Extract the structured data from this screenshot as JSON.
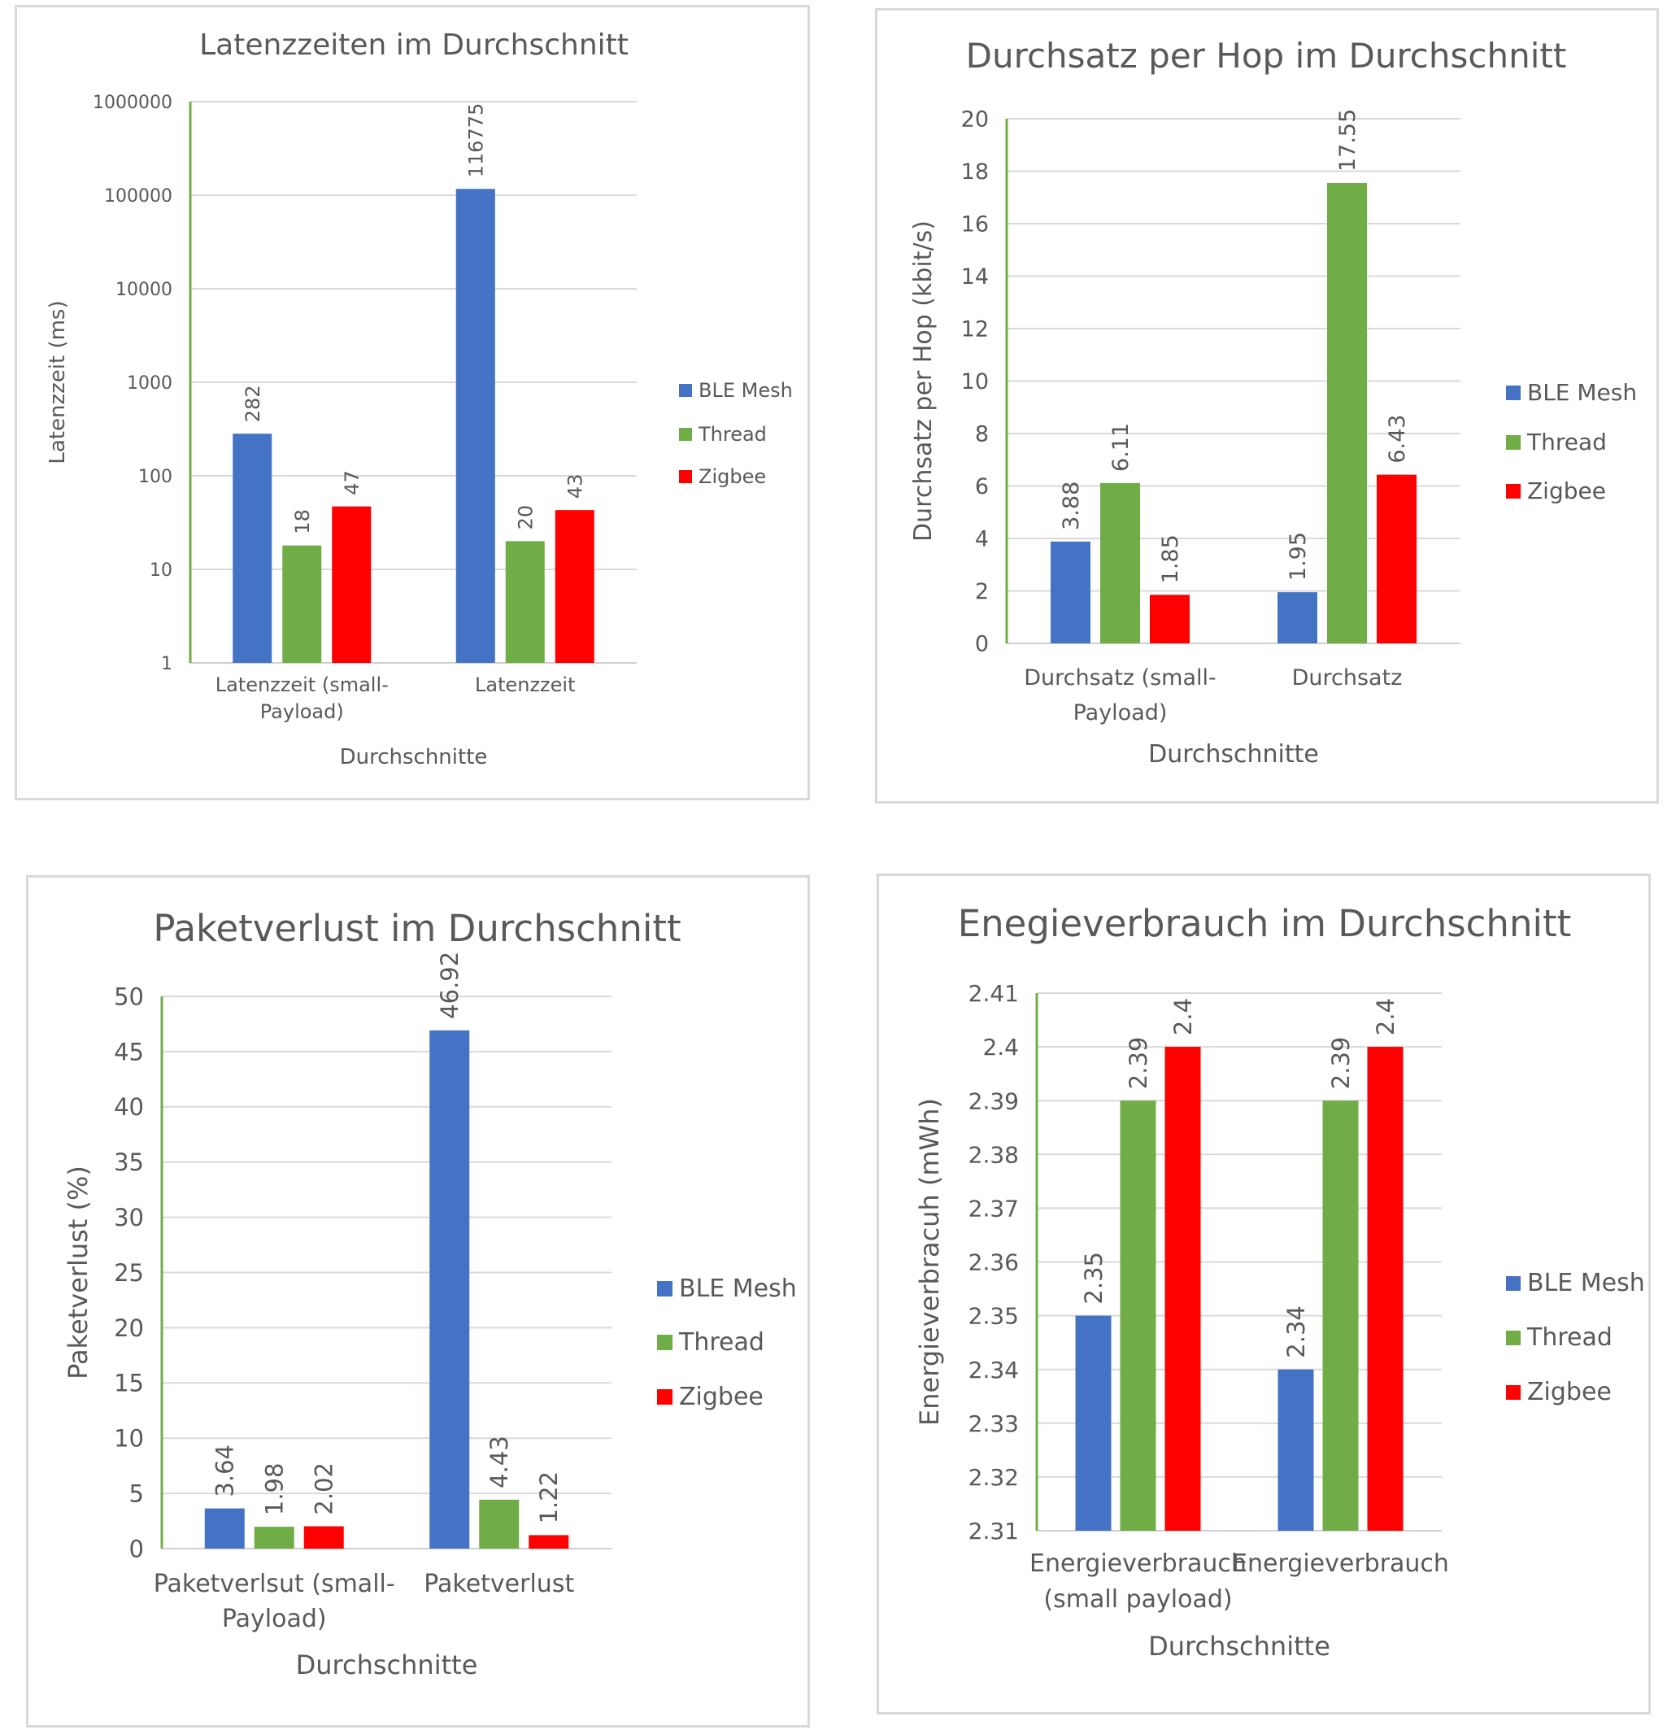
{
  "chart_data": [
    {
      "type": "bar",
      "title": "Latenzzeiten im Durchschnitt",
      "xlabel": "Durchschnitte",
      "ylabel": "Latenzzeit (ms)",
      "yscale": "log",
      "ylim": [
        1,
        1000000
      ],
      "yticks": [
        "1",
        "10",
        "100",
        "1000",
        "10000",
        "100000",
        "1000000"
      ],
      "categories": [
        [
          "Latenzzeit (small-",
          "Payload)"
        ],
        [
          "Latenzzeit"
        ]
      ],
      "series": [
        {
          "name": "BLE Mesh",
          "color": "#4472c4",
          "values": [
            282,
            116775
          ],
          "labels": [
            "282",
            "116775"
          ]
        },
        {
          "name": "Thread",
          "color": "#70ad47",
          "values": [
            18,
            20
          ],
          "labels": [
            "18",
            "20"
          ]
        },
        {
          "name": "Zigbee",
          "color": "#ff0000",
          "values": [
            47,
            43
          ],
          "labels": [
            "47",
            "43"
          ]
        }
      ],
      "legend_position": "right",
      "grid": true
    },
    {
      "type": "bar",
      "title": "Durchsatz per Hop im Durchschnitt",
      "xlabel": "Durchschnitte",
      "ylabel": "Durchsatz per Hop (kbit/s)",
      "yscale": "linear",
      "ylim": [
        0,
        20
      ],
      "yticks": [
        "0",
        "2",
        "4",
        "6",
        "8",
        "10",
        "12",
        "14",
        "16",
        "18",
        "20"
      ],
      "categories": [
        [
          "Durchsatz (small-",
          "Payload)"
        ],
        [
          "Durchsatz"
        ]
      ],
      "series": [
        {
          "name": "BLE Mesh",
          "color": "#4472c4",
          "values": [
            3.88,
            1.95
          ],
          "labels": [
            "3.88",
            "1.95"
          ]
        },
        {
          "name": "Thread",
          "color": "#70ad47",
          "values": [
            6.11,
            17.55
          ],
          "labels": [
            "6.11",
            "17.55"
          ]
        },
        {
          "name": "Zigbee",
          "color": "#ff0000",
          "values": [
            1.85,
            6.43
          ],
          "labels": [
            "1.85",
            "6.43"
          ]
        }
      ],
      "legend_position": "right",
      "grid": true
    },
    {
      "type": "bar",
      "title": "Paketverlust im Durchschnitt",
      "xlabel": "Durchschnitte",
      "ylabel": "Paketverlust (%)",
      "yscale": "linear",
      "ylim": [
        0,
        50
      ],
      "yticks": [
        "0",
        "5",
        "10",
        "15",
        "20",
        "25",
        "30",
        "35",
        "40",
        "45",
        "50"
      ],
      "categories": [
        [
          "Paketverlsut (small-",
          "Payload)"
        ],
        [
          "Paketverlust"
        ]
      ],
      "series": [
        {
          "name": "BLE Mesh",
          "color": "#4472c4",
          "values": [
            3.64,
            46.92
          ],
          "labels": [
            "3.64",
            "46.92"
          ]
        },
        {
          "name": "Thread",
          "color": "#70ad47",
          "values": [
            1.98,
            4.43
          ],
          "labels": [
            "1.98",
            "4.43"
          ]
        },
        {
          "name": "Zigbee",
          "color": "#ff0000",
          "values": [
            2.02,
            1.22
          ],
          "labels": [
            "2.02",
            "1.22"
          ]
        }
      ],
      "legend_position": "right",
      "grid": true
    },
    {
      "type": "bar",
      "title": "Enegieverbrauch im Durchschnitt",
      "xlabel": "Durchschnitte",
      "ylabel": "Energieverbracuh (mWh)",
      "yscale": "linear",
      "ylim": [
        2.31,
        2.41
      ],
      "yticks": [
        "2.31",
        "2.32",
        "2.33",
        "2.34",
        "2.35",
        "2.36",
        "2.37",
        "2.38",
        "2.39",
        "2.4",
        "2.41"
      ],
      "categories": [
        [
          "Energieverbrauch",
          "(small payload)"
        ],
        [
          "Energieverbrauch"
        ]
      ],
      "series": [
        {
          "name": "BLE Mesh",
          "color": "#4472c4",
          "values": [
            2.35,
            2.34
          ],
          "labels": [
            "2.35",
            "2.34"
          ]
        },
        {
          "name": "Thread",
          "color": "#70ad47",
          "values": [
            2.39,
            2.39
          ],
          "labels": [
            "2.39",
            "2.39"
          ]
        },
        {
          "name": "Zigbee",
          "color": "#ff0000",
          "values": [
            2.4,
            2.4
          ],
          "labels": [
            "2.4",
            "2.4"
          ]
        }
      ],
      "legend_position": "right",
      "grid": true
    }
  ]
}
